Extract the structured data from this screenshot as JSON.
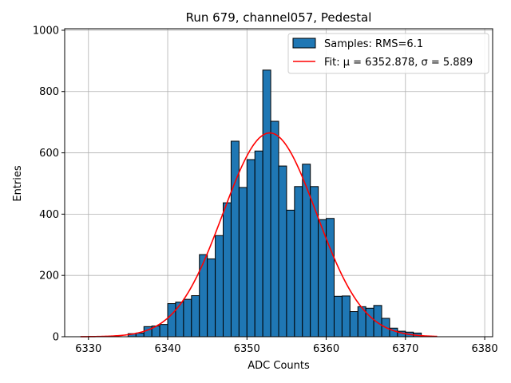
{
  "chart_data": {
    "type": "bar",
    "title": "Run 679, channel057, Pedestal",
    "xlabel": "ADC Counts",
    "ylabel": "Entries",
    "xlim": [
      6327,
      6381
    ],
    "ylim": [
      0,
      1005
    ],
    "xticks": [
      6330,
      6340,
      6350,
      6360,
      6370,
      6380
    ],
    "yticks": [
      0,
      200,
      400,
      600,
      800,
      1000
    ],
    "grid": true,
    "legend_position": "top-right",
    "bin_start": 6329,
    "bin_width": 1,
    "values": [
      0,
      0,
      0,
      0,
      0,
      0,
      10,
      12,
      33,
      35,
      40,
      108,
      113,
      122,
      134,
      268,
      254,
      330,
      437,
      638,
      487,
      578,
      606,
      870,
      703,
      557,
      413,
      490,
      563,
      490,
      382,
      386,
      132,
      133,
      82,
      98,
      93,
      102,
      60,
      28,
      18,
      15,
      12,
      0,
      0,
      0,
      0,
      0,
      0,
      0
    ],
    "fit": {
      "mu": 6352.878,
      "sigma": 5.889,
      "amplitude": 665,
      "x_range": [
        6329,
        6374
      ]
    },
    "series": [
      {
        "name": "Samples: RMS=6.1",
        "kind": "histogram",
        "color": "#1f77b4",
        "edgecolor": "#000000"
      },
      {
        "name": "Fit: μ = 6352.878, σ = 5.889",
        "kind": "line",
        "color": "#ff0000"
      }
    ]
  }
}
